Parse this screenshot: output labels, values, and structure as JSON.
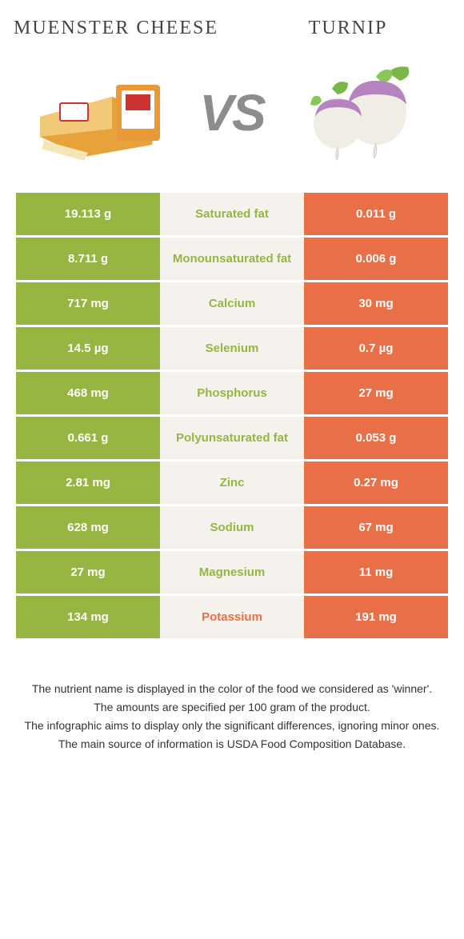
{
  "header": {
    "left": "Muenster cheese",
    "right": "Turnip"
  },
  "vs": "VS",
  "colors": {
    "left_bg": "#96b541",
    "right_bg": "#e86f47",
    "mid_bg": "#f5f2ed",
    "left_text": "#96b541",
    "right_text": "#e86f47"
  },
  "rows": [
    {
      "left": "19.113 g",
      "label": "Saturated fat",
      "right": "0.011 g",
      "winner": "left"
    },
    {
      "left": "8.711 g",
      "label": "Monounsaturated fat",
      "right": "0.006 g",
      "winner": "left"
    },
    {
      "left": "717 mg",
      "label": "Calcium",
      "right": "30 mg",
      "winner": "left"
    },
    {
      "left": "14.5 µg",
      "label": "Selenium",
      "right": "0.7 µg",
      "winner": "left"
    },
    {
      "left": "468 mg",
      "label": "Phosphorus",
      "right": "27 mg",
      "winner": "left"
    },
    {
      "left": "0.661 g",
      "label": "Polyunsaturated fat",
      "right": "0.053 g",
      "winner": "left"
    },
    {
      "left": "2.81 mg",
      "label": "Zinc",
      "right": "0.27 mg",
      "winner": "left"
    },
    {
      "left": "628 mg",
      "label": "Sodium",
      "right": "67 mg",
      "winner": "left"
    },
    {
      "left": "27 mg",
      "label": "Magnesium",
      "right": "11 mg",
      "winner": "left"
    },
    {
      "left": "134 mg",
      "label": "Potassium",
      "right": "191 mg",
      "winner": "right"
    }
  ],
  "footer": {
    "l1": "The nutrient name is displayed in the color of the food we considered as 'winner'.",
    "l2": "The amounts are specified per 100 gram of the product.",
    "l3": "The infographic aims to display only the significant differences, ignoring minor ones.",
    "l4": "The main source of information is USDA Food Composition Database."
  }
}
